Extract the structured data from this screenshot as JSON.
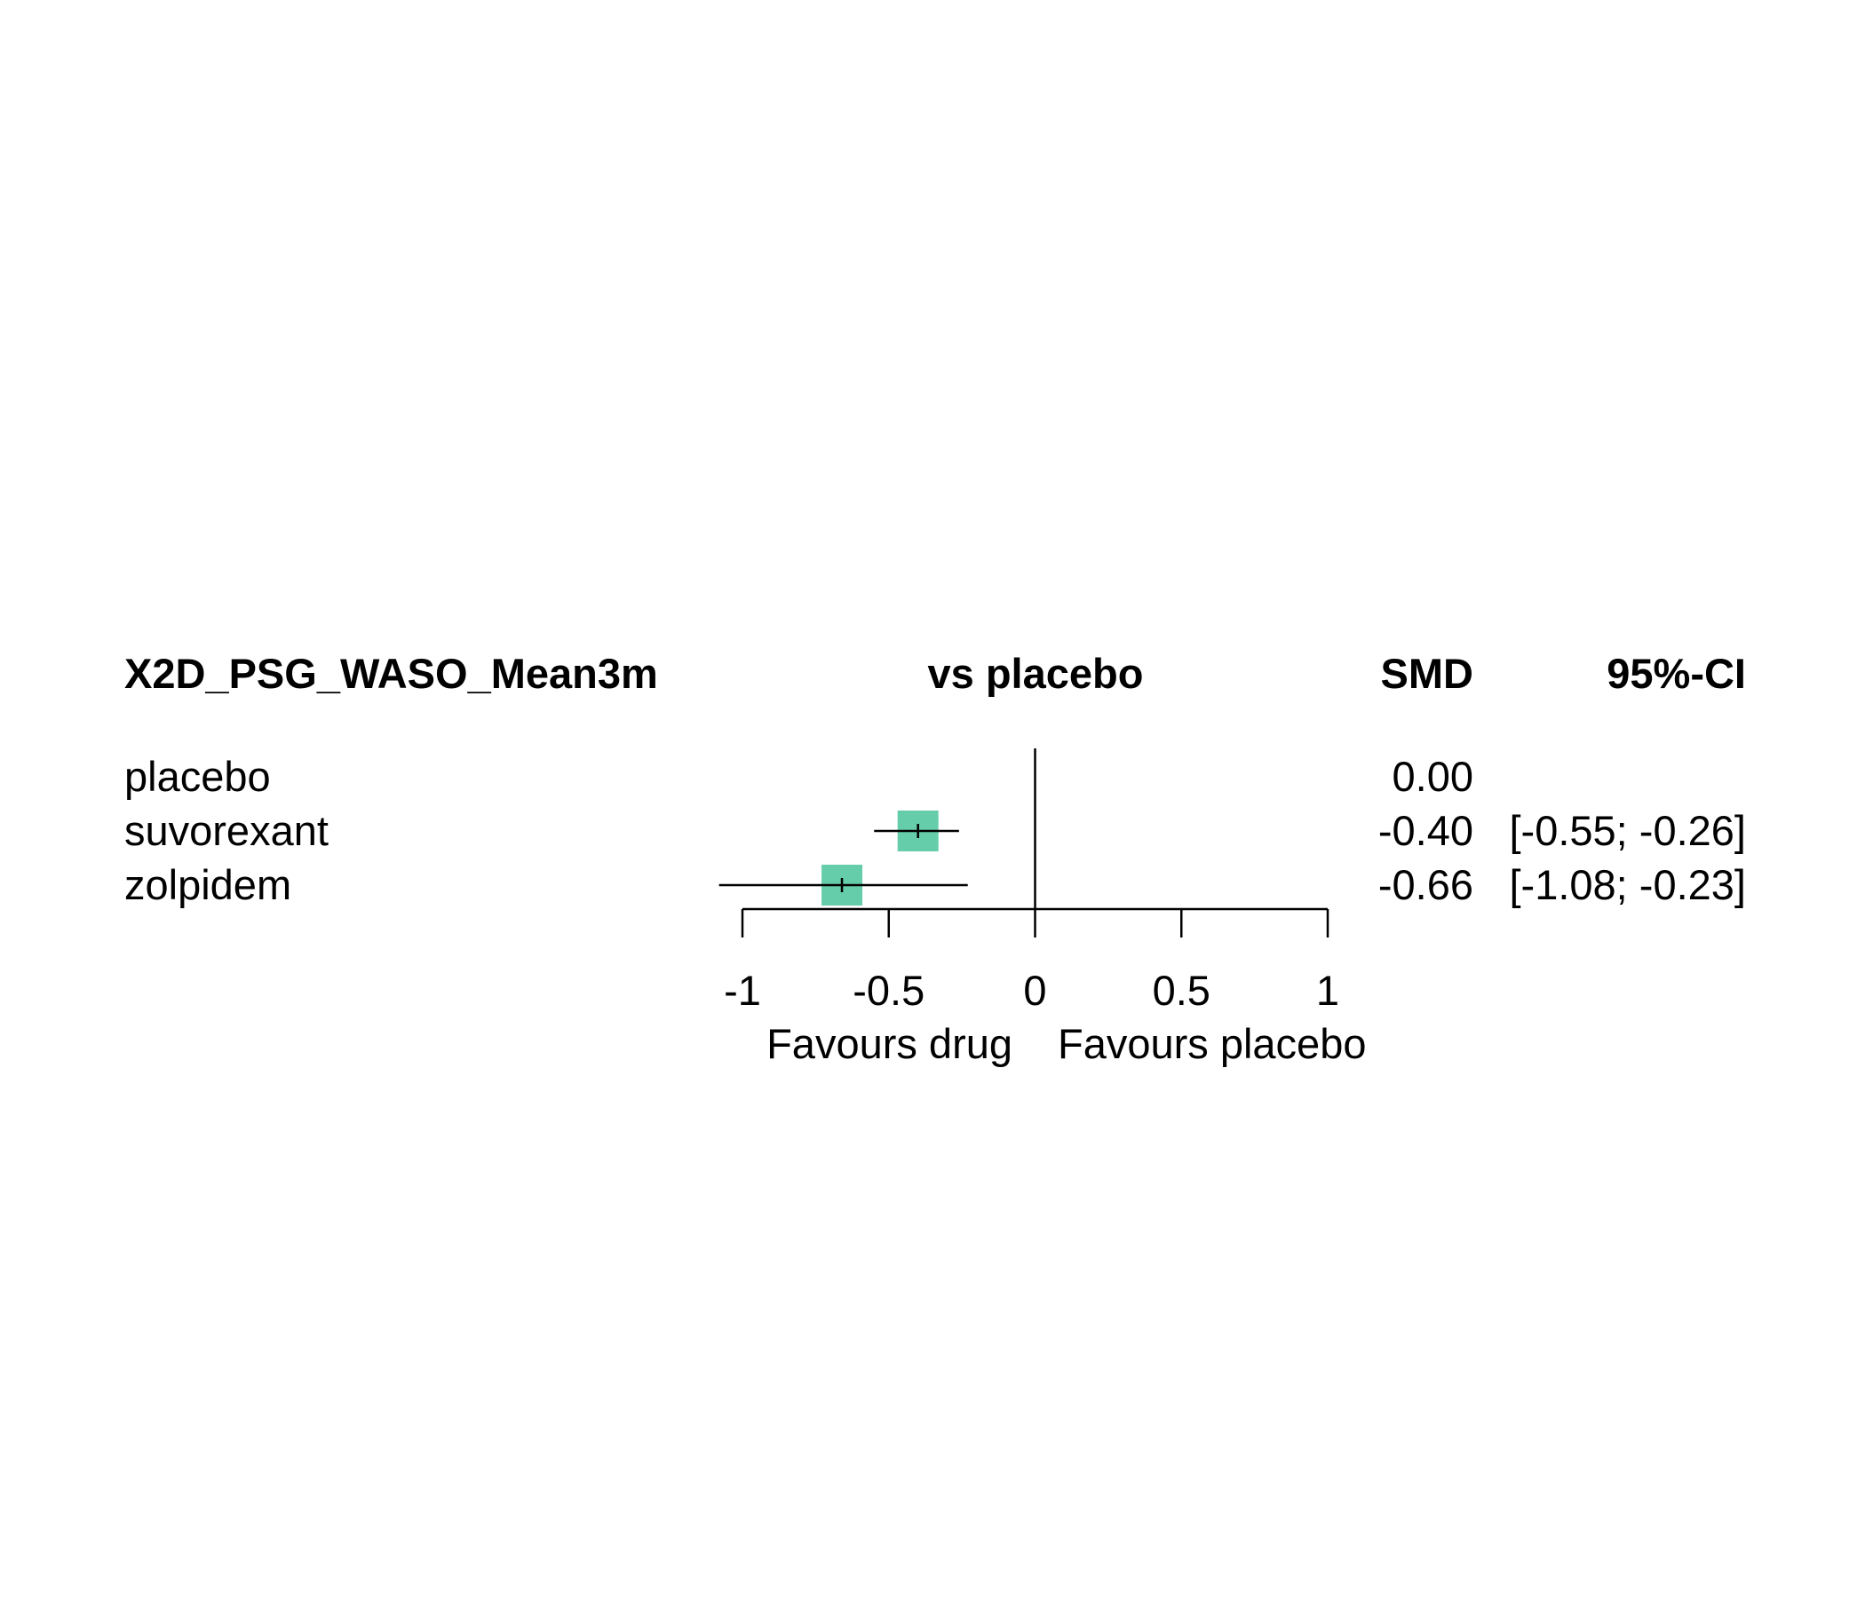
{
  "chart_data": {
    "type": "forest",
    "headers": {
      "outcome": "X2D_PSG_WASO_Mean3m",
      "comparison": "vs placebo",
      "estimate": "SMD",
      "ci": "95%-CI"
    },
    "rows": [
      {
        "treatment": "placebo",
        "smd": 0.0,
        "lower": null,
        "upper": null,
        "smd_text": "0.00",
        "ci_text": ""
      },
      {
        "treatment": "suvorexant",
        "smd": -0.4,
        "lower": -0.55,
        "upper": -0.26,
        "smd_text": "-0.40",
        "ci_text": "[-0.55; -0.26]"
      },
      {
        "treatment": "zolpidem",
        "smd": -0.66,
        "lower": -1.08,
        "upper": -0.23,
        "smd_text": "-0.66",
        "ci_text": "[-1.08; -0.23]"
      }
    ],
    "x_ticks": [
      -1,
      -0.5,
      0,
      0.5,
      1
    ],
    "x_tick_labels": [
      "-1",
      "-0.5",
      "0",
      "0.5",
      "1"
    ],
    "xlim": [
      -1,
      1
    ],
    "reference_line": 0,
    "favours_left": "Favours drug",
    "favours_right": "Favours placebo",
    "colors": {
      "box": "#66CDAA",
      "line": "#000000"
    }
  }
}
